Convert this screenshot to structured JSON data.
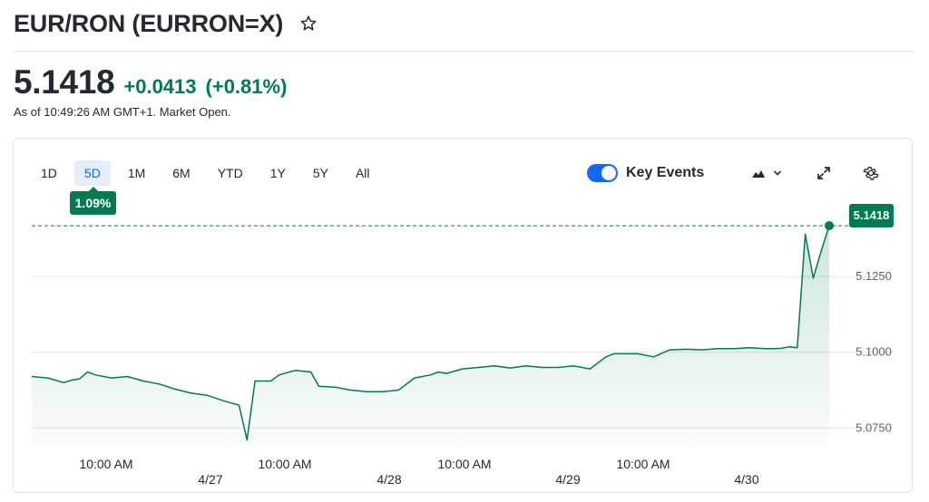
{
  "header": {
    "title": "EUR/RON (EURRON=X)",
    "price": "5.1418",
    "change": "+0.0413",
    "change_pct": "(+0.81%)",
    "as_of": "As of 10:49:26 AM GMT+1. Market Open."
  },
  "toolbar": {
    "ranges": [
      "1D",
      "5D",
      "1M",
      "6M",
      "YTD",
      "1Y",
      "5Y",
      "All"
    ],
    "active_range": "5D",
    "range_change_tag": "1.09%",
    "key_events_label": "Key Events",
    "key_events_on": true
  },
  "colors": {
    "accent": "#007a52",
    "up": "#007a52",
    "active_range": "#0f69ff"
  },
  "icons": [
    "star-icon",
    "mountain-chart-icon",
    "chevron-down-icon",
    "expand-icon",
    "gear-icon"
  ],
  "chart_data": {
    "type": "area",
    "title": "",
    "xlabel": "",
    "ylabel": "",
    "last_price_label": "5.1418",
    "y_tick_labels": [
      "5.1250",
      "5.1000",
      "5.0750"
    ],
    "y_ticks": [
      5.125,
      5.1,
      5.075
    ],
    "ylim": [
      5.0685,
      5.1505
    ],
    "x_tick_labels": [
      {
        "time": "10:00 AM",
        "date": "4/27"
      },
      {
        "time": "10:00 AM",
        "date": "4/28"
      },
      {
        "time": "10:00 AM",
        "date": "4/29"
      },
      {
        "time": "10:00 AM",
        "date": "4/30"
      }
    ],
    "grid": true,
    "reference_line": 5.1418,
    "series": [
      {
        "x": [
          0,
          0.02,
          0.04,
          0.05,
          0.06,
          0.07,
          0.08,
          0.1,
          0.12,
          0.14,
          0.16,
          0.18,
          0.2,
          0.22,
          0.24,
          0.26,
          0.27,
          0.28,
          0.3,
          0.31,
          0.33,
          0.35,
          0.36,
          0.38,
          0.4,
          0.42,
          0.44,
          0.46,
          0.48,
          0.5,
          0.51,
          0.52,
          0.54,
          0.56,
          0.58,
          0.6,
          0.62,
          0.64,
          0.66,
          0.68,
          0.7,
          0.72,
          0.73,
          0.74,
          0.76,
          0.78,
          0.8,
          0.82,
          0.84,
          0.86,
          0.88,
          0.9,
          0.92,
          0.93,
          0.94,
          0.95,
          0.96,
          0.97,
          0.98,
          0.99,
          1.0
        ],
        "y": [
          5.092,
          5.0915,
          5.09,
          5.0908,
          5.0912,
          5.0935,
          5.0925,
          5.0915,
          5.092,
          5.0905,
          5.0895,
          5.0878,
          5.0865,
          5.0858,
          5.084,
          5.0825,
          5.071,
          5.0905,
          5.0905,
          5.0925,
          5.094,
          5.0935,
          5.0888,
          5.0885,
          5.0875,
          5.087,
          5.087,
          5.0875,
          5.0915,
          5.0925,
          5.0935,
          5.093,
          5.0945,
          5.095,
          5.0955,
          5.0948,
          5.0955,
          5.095,
          5.095,
          5.0955,
          5.0945,
          5.0985,
          5.0995,
          5.0995,
          5.0995,
          5.0985,
          5.1008,
          5.101,
          5.1008,
          5.1012,
          5.1012,
          5.1015,
          5.1012,
          5.1012,
          5.1013,
          5.1018,
          5.1015,
          5.139,
          5.1245,
          5.1335,
          5.1418
        ]
      }
    ]
  }
}
